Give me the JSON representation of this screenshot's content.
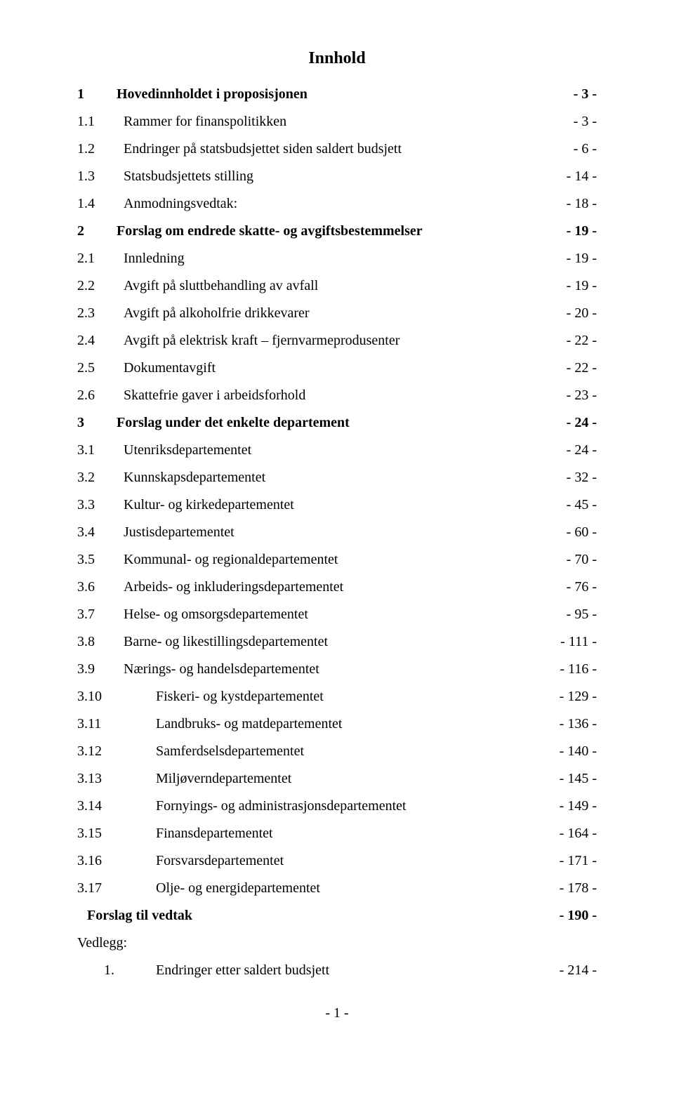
{
  "title": "Innhold",
  "footer": "- 1 -",
  "entries": [
    {
      "num": "1",
      "label": "Hovedinnholdet i proposisjonen",
      "page": "- 3 -",
      "bold": true,
      "indent": 0,
      "leader": "dots"
    },
    {
      "num": "1.1",
      "label": "Rammer for finanspolitikken",
      "page": "- 3 -",
      "bold": false,
      "indent": 1,
      "leader": "dots"
    },
    {
      "num": "1.2",
      "label": "Endringer på statsbudsjettet siden saldert budsjett",
      "page": "- 6 -",
      "bold": false,
      "indent": 1,
      "leader": "dots"
    },
    {
      "num": "1.3",
      "label": "Statsbudsjettets stilling",
      "page": "- 14 -",
      "bold": false,
      "indent": 1,
      "leader": "dots"
    },
    {
      "num": "1.4",
      "label": "Anmodningsvedtak:",
      "page": "- 18 -",
      "bold": false,
      "indent": 1,
      "leader": "dots"
    },
    {
      "num": "2",
      "label": "Forslag om endrede skatte- og avgiftsbestemmelser",
      "page": "- 19 -",
      "bold": true,
      "indent": 0,
      "leader": "dots"
    },
    {
      "num": "2.1",
      "label": "Innledning",
      "page": "- 19 -",
      "bold": false,
      "indent": 1,
      "leader": "dots"
    },
    {
      "num": "2.2",
      "label": "Avgift på sluttbehandling av avfall",
      "page": "- 19 -",
      "bold": false,
      "indent": 1,
      "leader": "dots"
    },
    {
      "num": "2.3",
      "label": "Avgift på alkoholfrie drikkevarer",
      "page": "- 20 -",
      "bold": false,
      "indent": 1,
      "leader": "dots"
    },
    {
      "num": "2.4",
      "label": "Avgift på elektrisk kraft – fjernvarmeprodusenter",
      "page": "- 22 -",
      "bold": false,
      "indent": 1,
      "leader": "dots"
    },
    {
      "num": "2.5",
      "label": "Dokumentavgift",
      "page": "- 22 -",
      "bold": false,
      "indent": 1,
      "leader": "dots"
    },
    {
      "num": "2.6",
      "label": "Skattefrie gaver i arbeidsforhold",
      "page": "- 23 -",
      "bold": false,
      "indent": 1,
      "leader": "dots"
    },
    {
      "num": "3",
      "label": "Forslag under det enkelte departement",
      "page": "- 24 -",
      "bold": true,
      "indent": 0,
      "leader": "dots"
    },
    {
      "num": "3.1",
      "label": "Utenriksdepartementet",
      "page": "- 24 -",
      "bold": false,
      "indent": 1,
      "leader": "dots"
    },
    {
      "num": "3.2",
      "label": "Kunnskapsdepartementet",
      "page": "- 32 -",
      "bold": false,
      "indent": 1,
      "leader": "dots"
    },
    {
      "num": "3.3",
      "label": "Kultur- og kirkedepartementet",
      "page": "- 45 -",
      "bold": false,
      "indent": 1,
      "leader": "dots"
    },
    {
      "num": "3.4",
      "label": "Justisdepartementet",
      "page": "- 60 -",
      "bold": false,
      "indent": 1,
      "leader": "dots"
    },
    {
      "num": "3.5",
      "label": "Kommunal- og regionaldepartementet",
      "page": "- 70 -",
      "bold": false,
      "indent": 1,
      "leader": "dots"
    },
    {
      "num": "3.6",
      "label": "Arbeids- og inkluderingsdepartementet",
      "page": "- 76 -",
      "bold": false,
      "indent": 1,
      "leader": "dots"
    },
    {
      "num": "3.7",
      "label": "Helse- og omsorgsdepartementet",
      "page": "- 95 -",
      "bold": false,
      "indent": 1,
      "leader": "dots"
    },
    {
      "num": "3.8",
      "label": "Barne- og likestillingsdepartementet",
      "page": "- 111 -",
      "bold": false,
      "indent": 1,
      "leader": "dots"
    },
    {
      "num": "3.9",
      "label": "Nærings- og handelsdepartementet",
      "page": "- 116 -",
      "bold": false,
      "indent": 1,
      "leader": "dots"
    },
    {
      "num": "3.10",
      "label": "Fiskeri- og kystdepartementet",
      "page": "- 129 -",
      "bold": false,
      "indent": 2,
      "leader": "dots"
    },
    {
      "num": "3.11",
      "label": "Landbruks- og matdepartementet",
      "page": "- 136 -",
      "bold": false,
      "indent": 2,
      "leader": "dots"
    },
    {
      "num": "3.12",
      "label": "Samferdselsdepartementet",
      "page": "- 140 -",
      "bold": false,
      "indent": 2,
      "leader": "dots"
    },
    {
      "num": "3.13",
      "label": "Miljøverndepartementet",
      "page": "- 145 -",
      "bold": false,
      "indent": 2,
      "leader": "dots"
    },
    {
      "num": "3.14",
      "label": "Fornyings- og administrasjonsdepartementet",
      "page": "- 149 -",
      "bold": false,
      "indent": 2,
      "leader": "dots"
    },
    {
      "num": "3.15",
      "label": "Finansdepartementet",
      "page": "- 164 -",
      "bold": false,
      "indent": 2,
      "leader": "dots"
    },
    {
      "num": "3.16",
      "label": "Forsvarsdepartementet",
      "page": "- 171 -",
      "bold": false,
      "indent": 2,
      "leader": "dots"
    },
    {
      "num": "3.17",
      "label": "Olje- og energidepartementet",
      "page": "- 178 -",
      "bold": false,
      "indent": 2,
      "leader": "dots"
    },
    {
      "num": "",
      "label": "Forslag til vedtak",
      "page": "- 190 -",
      "bold": true,
      "indent": 0,
      "leader": "dashes"
    }
  ],
  "vedlegg": {
    "heading": "Vedlegg:",
    "items": [
      {
        "num": "1.",
        "label": "Endringer etter saldert budsjett",
        "page": "- 214 -"
      }
    ]
  }
}
